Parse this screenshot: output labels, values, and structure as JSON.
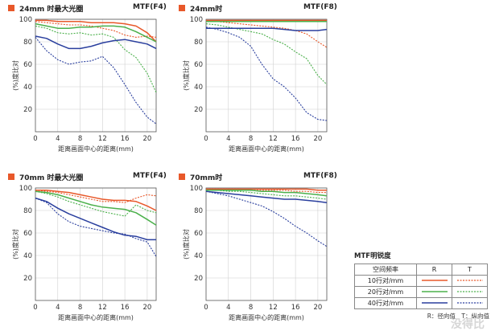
{
  "colors": {
    "r10": "#e8582a",
    "r20": "#4bb04b",
    "r40": "#2a3f9e",
    "accent": "#e8582a"
  },
  "legend": {
    "title": "MTF明锐度",
    "header": [
      "空间频率",
      "R",
      "T"
    ],
    "rows": [
      "10行对/mm",
      "20行对/mm",
      "40行对/mm"
    ],
    "note": "R：径向值　T：纵向值"
  },
  "watermark": "没得比",
  "chart_data": [
    {
      "type": "line",
      "title": "24mm 时最大光圈",
      "subtitle": "MTF(F4)",
      "xlabel": "距离画面中心的距离(mm)",
      "ylabel": "(%)度比对",
      "xlim": [
        0,
        21.6
      ],
      "ylim": [
        0,
        100
      ],
      "xticks": [
        "0",
        "4",
        "8",
        "12",
        "16",
        "20"
      ],
      "yticks": [
        "20",
        "40",
        "60",
        "80",
        "100"
      ],
      "x": [
        0,
        2,
        4,
        6,
        8,
        10,
        12,
        14,
        16,
        18,
        20,
        21.6
      ],
      "series": [
        {
          "freq": "10",
          "orient": "R",
          "values": [
            99,
            99,
            98,
            98,
            98,
            97,
            97,
            97,
            96,
            94,
            88,
            80
          ]
        },
        {
          "freq": "10",
          "orient": "T",
          "values": [
            98,
            97,
            96,
            95,
            95,
            94,
            92,
            90,
            86,
            84,
            85,
            84
          ]
        },
        {
          "freq": "20",
          "orient": "R",
          "values": [
            96,
            94,
            92,
            92,
            93,
            93,
            94,
            94,
            93,
            89,
            84,
            80
          ]
        },
        {
          "freq": "20",
          "orient": "T",
          "values": [
            94,
            92,
            88,
            87,
            88,
            86,
            87,
            84,
            73,
            66,
            52,
            35
          ]
        },
        {
          "freq": "40",
          "orient": "R",
          "values": [
            85,
            83,
            78,
            74,
            74,
            76,
            79,
            81,
            82,
            80,
            78,
            74
          ]
        },
        {
          "freq": "40",
          "orient": "T",
          "values": [
            84,
            72,
            64,
            60,
            62,
            63,
            67,
            57,
            42,
            26,
            13,
            7
          ]
        }
      ]
    },
    {
      "type": "line",
      "title": "24mm时",
      "subtitle": "MTF(F8)",
      "xlabel": "距离画面中心的距离(mm)",
      "ylabel": "(%)度比对",
      "xlim": [
        0,
        21.6
      ],
      "ylim": [
        0,
        100
      ],
      "xticks": [
        "0",
        "4",
        "8",
        "12",
        "16",
        "20"
      ],
      "yticks": [
        "20",
        "40",
        "60",
        "80",
        "100"
      ],
      "x": [
        0,
        2,
        4,
        6,
        8,
        10,
        12,
        14,
        16,
        18,
        20,
        21.6
      ],
      "series": [
        {
          "freq": "10",
          "orient": "R",
          "values": [
            99,
            99,
            99,
            99,
            99,
            99,
            99,
            99,
            99,
            99,
            99,
            99
          ]
        },
        {
          "freq": "10",
          "orient": "T",
          "values": [
            98,
            98,
            97,
            96,
            95,
            94,
            93,
            92,
            90,
            87,
            80,
            75
          ]
        },
        {
          "freq": "20",
          "orient": "R",
          "values": [
            98,
            98,
            98,
            98,
            98,
            98,
            98,
            98,
            98,
            98,
            98,
            98
          ]
        },
        {
          "freq": "20",
          "orient": "T",
          "values": [
            96,
            95,
            93,
            91,
            89,
            87,
            82,
            78,
            71,
            65,
            50,
            42
          ]
        },
        {
          "freq": "40",
          "orient": "R",
          "values": [
            92,
            92,
            92,
            92,
            92,
            92,
            92,
            91,
            90,
            90,
            90,
            91
          ]
        },
        {
          "freq": "40",
          "orient": "T",
          "values": [
            93,
            91,
            88,
            84,
            76,
            60,
            47,
            40,
            30,
            17,
            11,
            10
          ]
        }
      ]
    },
    {
      "type": "line",
      "title": "70mm 时最大光圈",
      "subtitle": "MTF(F4)",
      "xlabel": "距离画面中心的距离(mm)",
      "ylabel": "(%)度比对",
      "xlim": [
        0,
        21.6
      ],
      "ylim": [
        0,
        100
      ],
      "xticks": [
        "0",
        "4",
        "8",
        "12",
        "16",
        "20"
      ],
      "yticks": [
        "20",
        "40",
        "60",
        "80",
        "100"
      ],
      "x": [
        0,
        2,
        4,
        6,
        8,
        10,
        12,
        14,
        16,
        18,
        20,
        21.6
      ],
      "series": [
        {
          "freq": "10",
          "orient": "R",
          "values": [
            98,
            98,
            97,
            96,
            94,
            92,
            90,
            89,
            89,
            88,
            84,
            80
          ]
        },
        {
          "freq": "10",
          "orient": "T",
          "values": [
            98,
            97,
            96,
            94,
            92,
            90,
            88,
            88,
            87,
            91,
            94,
            93
          ]
        },
        {
          "freq": "20",
          "orient": "R",
          "values": [
            97,
            96,
            94,
            91,
            88,
            85,
            83,
            82,
            81,
            78,
            72,
            67
          ]
        },
        {
          "freq": "20",
          "orient": "T",
          "values": [
            97,
            95,
            92,
            88,
            85,
            82,
            79,
            77,
            75,
            85,
            80,
            78
          ]
        },
        {
          "freq": "40",
          "orient": "R",
          "values": [
            91,
            88,
            82,
            77,
            73,
            69,
            65,
            61,
            58,
            57,
            54,
            54
          ]
        },
        {
          "freq": "40",
          "orient": "T",
          "values": [
            91,
            87,
            77,
            70,
            66,
            64,
            62,
            60,
            59,
            55,
            52,
            39
          ]
        }
      ]
    },
    {
      "type": "line",
      "title": "70mm时",
      "subtitle": "MTF(F8)",
      "xlabel": "距离画面中心的距离(mm)",
      "ylabel": "(%)度比对",
      "xlim": [
        0,
        21.6
      ],
      "ylim": [
        0,
        100
      ],
      "xticks": [
        "0",
        "4",
        "8",
        "12",
        "16",
        "20"
      ],
      "yticks": [
        "20",
        "40",
        "60",
        "80",
        "100"
      ],
      "x": [
        0,
        2,
        4,
        6,
        8,
        10,
        12,
        14,
        16,
        18,
        20,
        21.6
      ],
      "series": [
        {
          "freq": "10",
          "orient": "R",
          "values": [
            99,
            99,
            99,
            99,
            99,
            99,
            99,
            99,
            99,
            99,
            98,
            98
          ]
        },
        {
          "freq": "10",
          "orient": "T",
          "values": [
            99,
            99,
            99,
            99,
            98,
            98,
            98,
            98,
            97,
            97,
            96,
            96
          ]
        },
        {
          "freq": "20",
          "orient": "R",
          "values": [
            98,
            98,
            98,
            98,
            98,
            97,
            97,
            96,
            96,
            95,
            94,
            93
          ]
        },
        {
          "freq": "20",
          "orient": "T",
          "values": [
            98,
            98,
            97,
            97,
            96,
            95,
            94,
            93,
            93,
            92,
            91,
            90
          ]
        },
        {
          "freq": "40",
          "orient": "R",
          "values": [
            97,
            96,
            95,
            94,
            93,
            92,
            91,
            90,
            90,
            89,
            88,
            87
          ]
        },
        {
          "freq": "40",
          "orient": "T",
          "values": [
            97,
            95,
            93,
            90,
            87,
            84,
            79,
            73,
            66,
            60,
            53,
            48
          ]
        }
      ]
    }
  ]
}
